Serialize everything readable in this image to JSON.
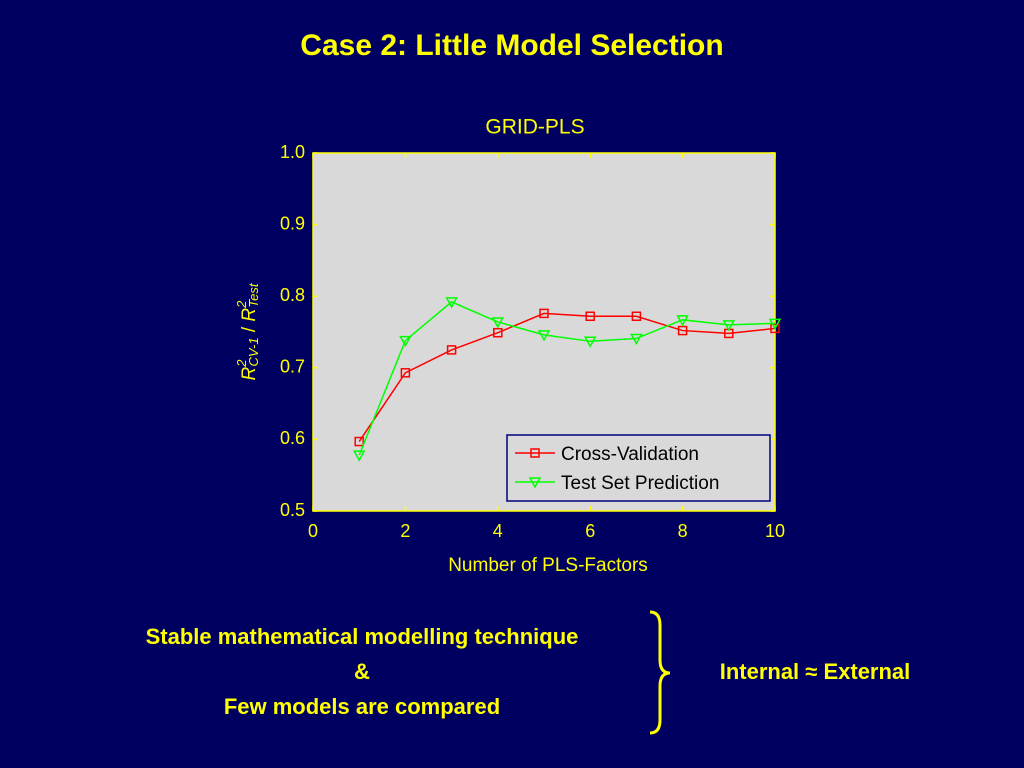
{
  "slide": {
    "title": "Case 2: Little Model Selection",
    "notes": [
      "Stable mathematical modelling technique",
      "&",
      "Few models are compared"
    ],
    "conclusion": "Internal ≈ External"
  },
  "chart_data": {
    "type": "line",
    "title": "GRID-PLS",
    "xlabel": "Number of PLS-Factors",
    "ylabel": [
      "R",
      "2",
      "CV-1",
      " / ",
      "R",
      "2",
      "Test"
    ],
    "x": [
      1,
      2,
      3,
      4,
      5,
      6,
      7,
      8,
      9,
      10
    ],
    "series": [
      {
        "name": "Cross-Validation",
        "color": "#ff0000",
        "marker": "square",
        "values": [
          0.597,
          0.693,
          0.725,
          0.749,
          0.776,
          0.772,
          0.772,
          0.752,
          0.748,
          0.755
        ]
      },
      {
        "name": "Test Set Prediction",
        "color": "#00ff00",
        "marker": "triangle-down",
        "values": [
          0.578,
          0.738,
          0.792,
          0.764,
          0.746,
          0.737,
          0.741,
          0.767,
          0.76,
          0.762
        ]
      }
    ],
    "xlim": [
      0,
      10
    ],
    "xticks": [
      0,
      2,
      4,
      6,
      8,
      10
    ],
    "ylim": [
      0.5,
      1.0
    ],
    "yticks": [
      0.5,
      0.6,
      0.7,
      0.8,
      0.9,
      {
        "value": 1.0,
        "label": "1.0"
      }
    ],
    "grid": false,
    "legend": "lower right"
  }
}
